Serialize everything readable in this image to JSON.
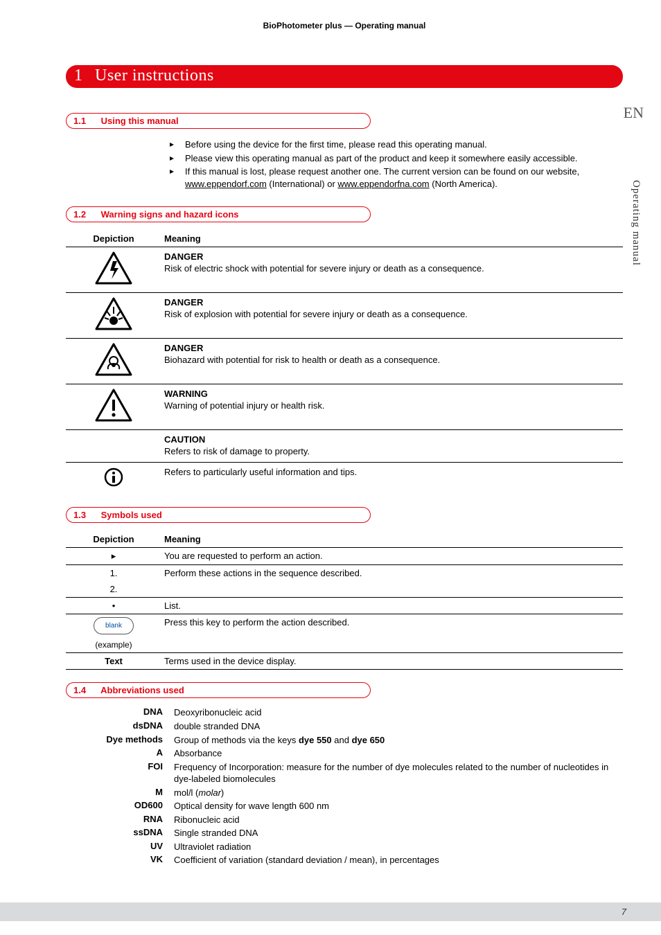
{
  "header": "BioPhotometer plus  —  Operating manual",
  "lang": "EN",
  "side": "Operating manual",
  "chapter": {
    "num": "1",
    "title": "User instructions"
  },
  "sec11": {
    "num": "1.1",
    "title": "Using this manual",
    "items": [
      "Before using the device for the first time, please read this operating manual.",
      "Please view this operating manual as part of the product and keep it somewhere easily accessible.",
      "If this manual is lost, please request another one. The current version can be found on our website, www.eppendorf.com (International) or www.eppendorfna.com (North America)."
    ]
  },
  "sec12": {
    "num": "1.2",
    "title": "Warning signs and hazard icons",
    "col1": "Depiction",
    "col2": "Meaning",
    "rows": [
      {
        "icon": "shock",
        "title": "DANGER",
        "desc": "Risk of electric shock with potential for severe injury or death as a consequence."
      },
      {
        "icon": "explosion",
        "title": "DANGER",
        "desc": "Risk of explosion with potential for severe injury or death as a consequence."
      },
      {
        "icon": "biohazard",
        "title": "DANGER",
        "desc": "Biohazard with potential for risk to health or death as a consequence."
      },
      {
        "icon": "warning",
        "title": "WARNING",
        "desc": "Warning of potential injury or health risk."
      },
      {
        "icon": "",
        "title": "CAUTION",
        "desc": "Refers to risk of damage to property."
      },
      {
        "icon": "info",
        "title": "",
        "desc": "Refers to particularly useful information and tips."
      }
    ]
  },
  "sec13": {
    "num": "1.3",
    "title": "Symbols used",
    "col1": "Depiction",
    "col2": "Meaning",
    "rows": [
      {
        "dep": "▸",
        "meaning": "You are requested to perform an action."
      },
      {
        "dep": "1.\n2.",
        "meaning": "Perform these actions in the sequence described."
      },
      {
        "dep": "•",
        "meaning": "List."
      },
      {
        "dep": "blank",
        "sub": "(example)",
        "meaning": "Press this key to perform the action described."
      },
      {
        "dep": "Text",
        "bold": true,
        "meaning": "Terms used in the device display."
      }
    ]
  },
  "sec14": {
    "num": "1.4",
    "title": "Abbreviations used",
    "items": [
      {
        "term": "DNA",
        "def": "Deoxyribonucleic acid"
      },
      {
        "term": "dsDNA",
        "def": "double stranded DNA"
      },
      {
        "term": "Dye methods",
        "def": "Group of methods via the keys dye 550 and dye 650",
        "bold_parts": [
          "dye 550",
          "dye 650"
        ]
      },
      {
        "term": "A",
        "def": "Absorbance"
      },
      {
        "term": "FOI",
        "def": "Frequency of Incorporation: measure for the number of dye molecules related to the number of nucleotides in dye-labeled biomolecules"
      },
      {
        "term": "M",
        "def": "mol/l (molar)",
        "italic_parts": [
          "molar"
        ]
      },
      {
        "term": "OD600",
        "def": "Optical density for wave length 600 nm"
      },
      {
        "term": "RNA",
        "def": "Ribonucleic acid"
      },
      {
        "term": "ssDNA",
        "def": "Single stranded DNA"
      },
      {
        "term": "UV",
        "def": "Ultraviolet radiation"
      },
      {
        "term": "VK",
        "def": "Coefficient of variation (standard deviation / mean), in percentages"
      }
    ]
  },
  "page_number": "7",
  "colors": {
    "brand_red": "#e30613",
    "footer_bg": "#d9dadb",
    "text": "#000000"
  }
}
